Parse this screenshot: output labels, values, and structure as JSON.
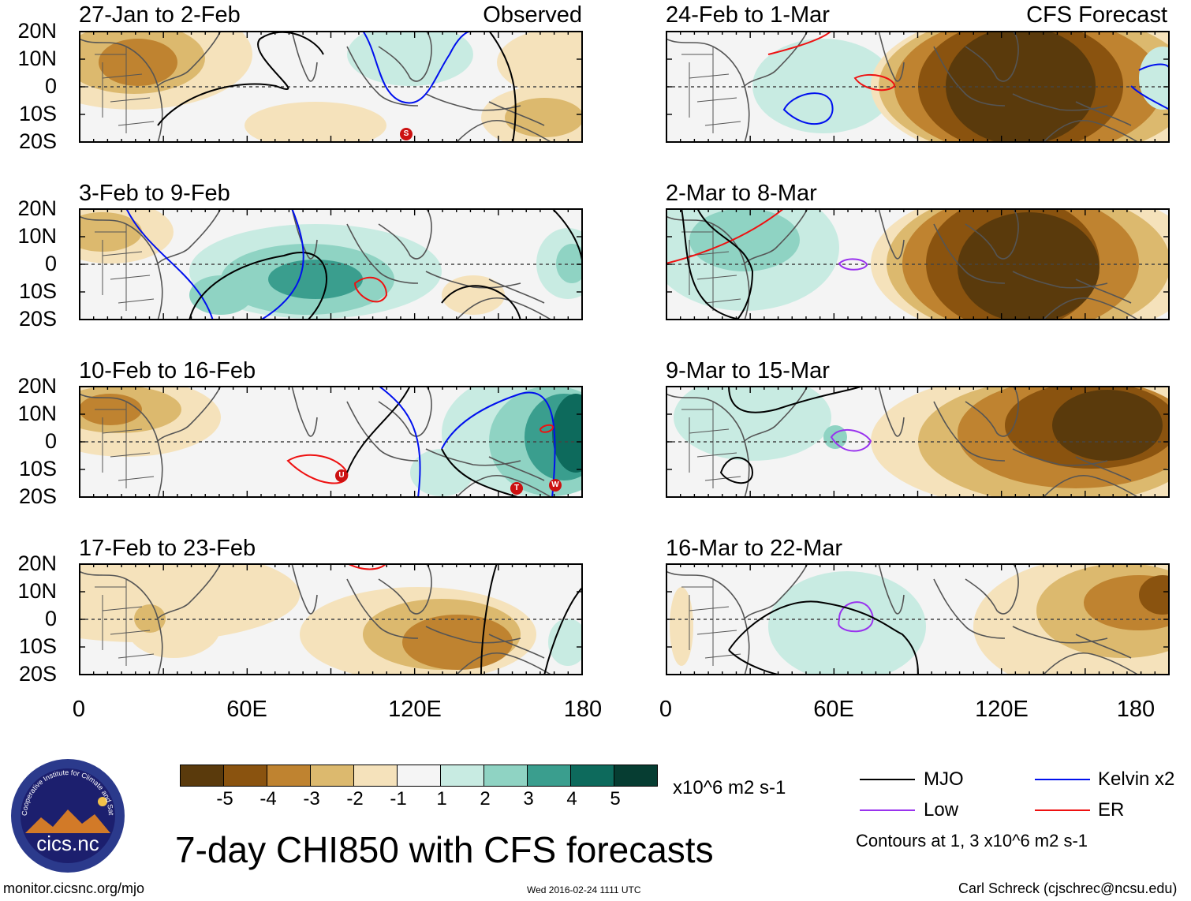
{
  "observed_tag": "Observed",
  "forecast_tag": "CFS Forecast",
  "lat_labels": [
    "20N",
    "10N",
    "0",
    "10S",
    "20S"
  ],
  "lon_labels": [
    "0",
    "60E",
    "120E",
    "180"
  ],
  "panels": [
    {
      "title": "27-Jan to 2-Feb",
      "tc": [
        {
          "mark": "S"
        }
      ]
    },
    {
      "title": "3-Feb to 9-Feb",
      "tc": []
    },
    {
      "title": "10-Feb to 16-Feb",
      "tc": [
        {
          "mark": "U"
        },
        {
          "mark": "T"
        },
        {
          "mark": "W"
        }
      ]
    },
    {
      "title": "17-Feb to 23-Feb",
      "tc": []
    },
    {
      "title": "24-Feb to 1-Mar",
      "tc": []
    },
    {
      "title": "2-Mar to 8-Mar",
      "tc": []
    },
    {
      "title": "9-Mar to 15-Mar",
      "tc": []
    },
    {
      "title": "16-Mar to 22-Mar",
      "tc": []
    }
  ],
  "colorbar": {
    "colors": [
      "#5a3a0c",
      "#8a530f",
      "#bf8330",
      "#dcb96e",
      "#f5e2bb",
      "#f5f5f5",
      "#c8ebe2",
      "#8fd3c3",
      "#3a9e8e",
      "#0d6a5c",
      "#063d32"
    ],
    "labels": [
      "-5",
      "-4",
      "-3",
      "-2",
      "-1",
      "1",
      "2",
      "3",
      "4",
      "5"
    ],
    "units": "x10^6 m2 s-1"
  },
  "legend": {
    "items": [
      {
        "label": "MJO",
        "color": "#000000"
      },
      {
        "label": "Kelvin x2",
        "color": "#0010ee"
      },
      {
        "label": "Low",
        "color": "#9933ee"
      },
      {
        "label": "ER",
        "color": "#ee1111"
      }
    ],
    "contours_note": "Contours at 1, 3 x10^6 m2 s-1"
  },
  "logo": {
    "text": "cics.nc",
    "ring_text": "Cooperative Institute for Climate and Satellites"
  },
  "title": "7-day CHI850 with CFS forecasts",
  "footer": {
    "url": "monitor.cicsnc.org/mjo",
    "timestamp": "Wed 2016-02-24 1111 UTC",
    "author": "Carl Schreck (cjschrec@ncsu.edu)"
  }
}
